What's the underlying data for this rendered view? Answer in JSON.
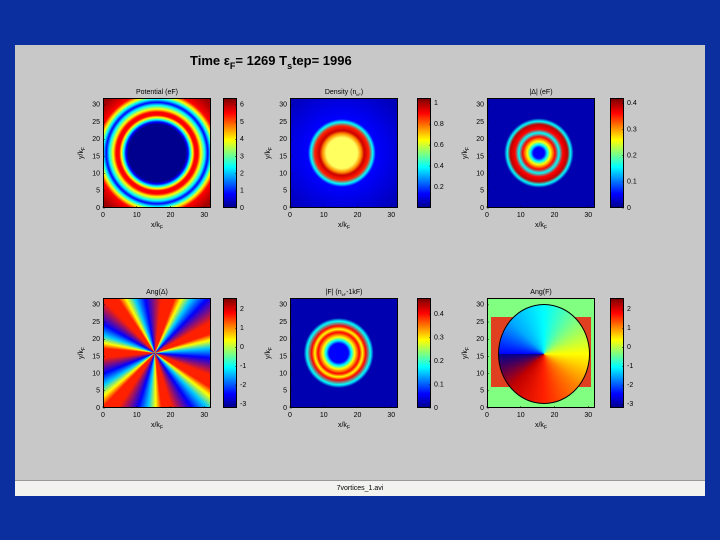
{
  "header": {
    "title": [
      {
        "t": "Time ε"
      },
      {
        "t": "F",
        "sub": true
      },
      {
        "t": "= 1269 T"
      },
      {
        "t": "s",
        "sub": true
      },
      {
        "t": "tep= 1996"
      }
    ]
  },
  "axes": {
    "xlabel": [
      {
        "t": "x/k"
      },
      {
        "t": "F",
        "sub": true
      }
    ],
    "ylabel": [
      {
        "t": "y/k"
      },
      {
        "t": "F",
        "sub": true
      }
    ],
    "xlim": [
      0,
      32
    ],
    "ylim": [
      0,
      32
    ],
    "xticks": [
      0,
      10,
      20,
      30
    ],
    "yticks": [
      0,
      5,
      10,
      15,
      20,
      25,
      30
    ]
  },
  "panels": [
    {
      "title": [
        {
          "t": "Potential (eF)"
        }
      ],
      "clim": [
        0,
        6.4
      ],
      "cticks": [
        0,
        1,
        2,
        3,
        4,
        5,
        6
      ]
    },
    {
      "title": [
        {
          "t": "Density (n"
        },
        {
          "t": "kF",
          "sub": true
        },
        {
          "t": ")"
        }
      ],
      "clim": [
        0,
        1.05
      ],
      "cticks": [
        0.2,
        0.4,
        0.6,
        0.8,
        1
      ]
    },
    {
      "title": [
        {
          "t": "|Δ| (eF)"
        }
      ],
      "clim": [
        0,
        0.42
      ],
      "cticks": [
        0,
        0.1,
        0.2,
        0.3,
        0.4
      ]
    },
    {
      "title": [
        {
          "t": "Ang(Δ)"
        }
      ],
      "clim": [
        -3.2,
        2.6
      ],
      "cticks": [
        -3,
        -2,
        -1,
        0,
        1,
        2
      ]
    },
    {
      "title": [
        {
          "t": "|F| (n"
        },
        {
          "t": "kF",
          "sub": true
        },
        {
          "t": "-1kF)"
        }
      ],
      "clim": [
        0,
        0.47
      ],
      "cticks": [
        0,
        0.1,
        0.2,
        0.3,
        0.4
      ]
    },
    {
      "title": [
        {
          "t": "Ang(F)"
        }
      ],
      "clim": [
        -3.2,
        2.6
      ],
      "cticks": [
        -3,
        -2,
        -1,
        0,
        1,
        2
      ]
    }
  ],
  "footer": {
    "filename": "7vortices_1.avi"
  }
}
